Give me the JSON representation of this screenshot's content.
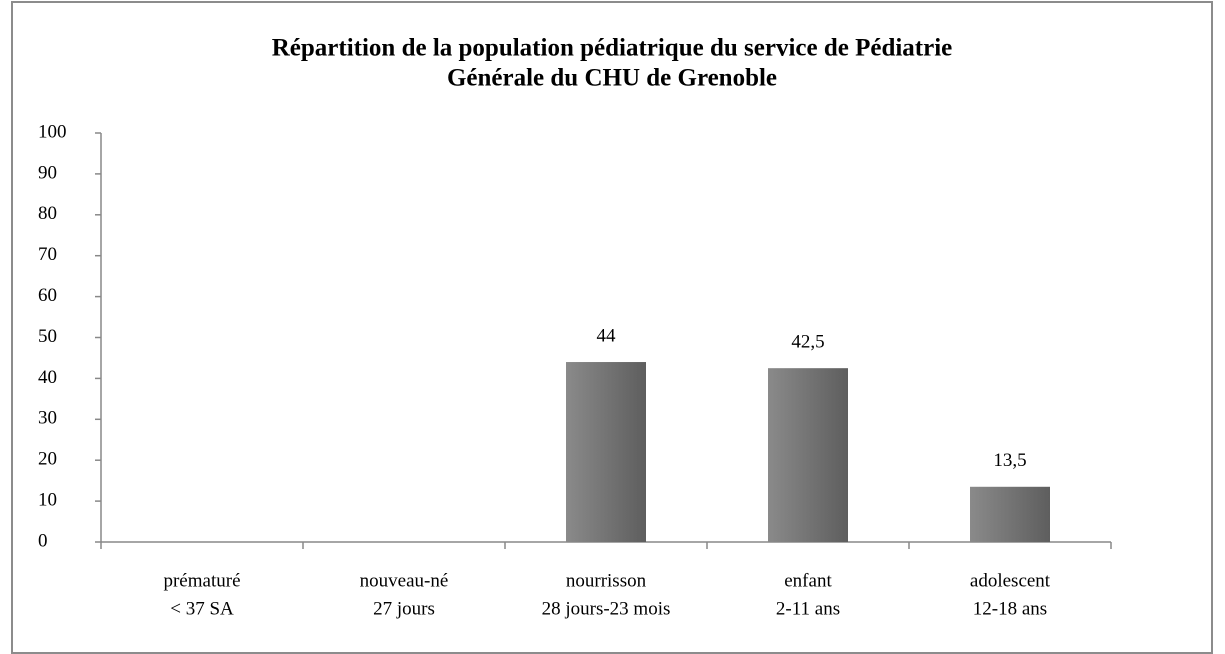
{
  "chart_data": {
    "type": "bar",
    "title": [
      "Répartition de la population pédiatrique du service de Pédiatrie",
      "Générale du CHU de Grenoble"
    ],
    "categories": [
      [
        "prématuré",
        "< 37 SA"
      ],
      [
        "nouveau-né",
        "27 jours"
      ],
      [
        "nourrisson",
        "28 jours-23 mois"
      ],
      [
        "enfant",
        "2-11 ans"
      ],
      [
        "adolescent",
        "12-18 ans"
      ]
    ],
    "values": [
      0,
      0,
      44,
      42.5,
      13.5
    ],
    "value_labels": [
      null,
      null,
      "44",
      "42,5",
      "13,5"
    ],
    "color": "#737373",
    "ylim": [
      0,
      100
    ],
    "yticks": [
      0,
      10,
      20,
      30,
      40,
      50,
      60,
      70,
      80,
      90,
      100
    ],
    "grid": false
  }
}
